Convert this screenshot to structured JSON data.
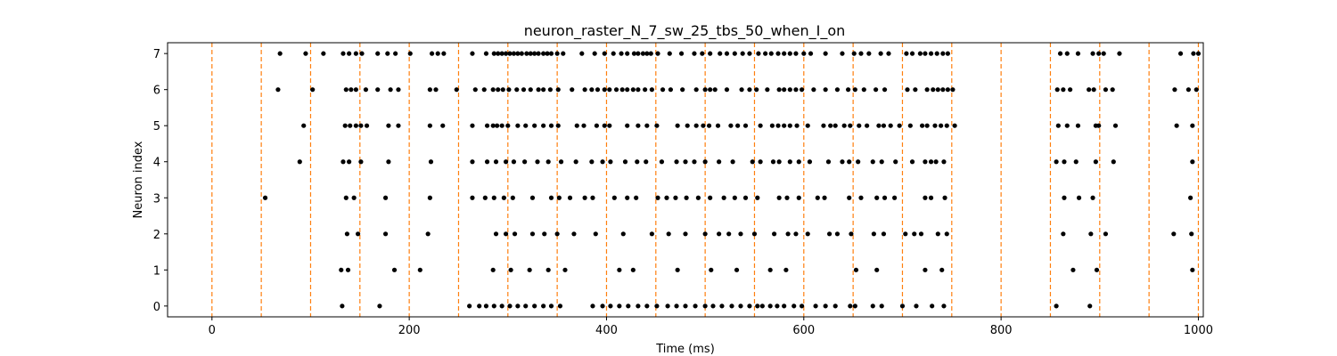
{
  "chart_data": {
    "type": "scatter",
    "title": "neuron_raster_N_7_sw_25_tbs_50_when_I_on",
    "xlabel": "Time (ms)",
    "ylabel": "Neuron index",
    "xlim": [
      -45,
      1005
    ],
    "ylim": [
      -0.3,
      7.3
    ],
    "xticks": [
      0,
      200,
      400,
      600,
      800,
      1000
    ],
    "yticks": [
      0,
      1,
      2,
      3,
      4,
      5,
      6,
      7
    ],
    "grid": false,
    "marker_color": "#000000",
    "vline_color": "#ff7f0e",
    "vlines": [
      0,
      50,
      100,
      150,
      200,
      250,
      300,
      350,
      400,
      450,
      500,
      550,
      600,
      650,
      700,
      750,
      800,
      850,
      900,
      950,
      1000
    ],
    "series": [
      {
        "neuron": 0,
        "spikes": [
          132,
          170,
          261,
          271,
          278,
          286,
          294,
          302,
          310,
          318,
          327,
          336,
          344,
          353,
          386,
          396,
          404,
          413,
          422,
          432,
          441,
          451,
          462,
          471,
          480,
          490,
          500,
          508,
          517,
          527,
          536,
          545,
          553,
          558,
          566,
          573,
          580,
          590,
          598,
          612,
          622,
          632,
          647,
          652,
          670,
          679,
          700,
          714,
          730,
          742,
          856,
          890
        ]
      },
      {
        "neuron": 1,
        "spikes": [
          131,
          138,
          185,
          211,
          285,
          303,
          322,
          341,
          358,
          413,
          427,
          472,
          506,
          532,
          566,
          582,
          653,
          674,
          723,
          740,
          873,
          897,
          994
        ]
      },
      {
        "neuron": 2,
        "spikes": [
          137,
          148,
          176,
          219,
          288,
          298,
          307,
          325,
          337,
          350,
          367,
          389,
          417,
          446,
          463,
          480,
          500,
          514,
          524,
          536,
          550,
          570,
          584,
          592,
          604,
          626,
          634,
          648,
          671,
          681,
          703,
          712,
          719,
          736,
          745,
          863,
          891,
          906,
          975,
          993
        ]
      },
      {
        "neuron": 3,
        "spikes": [
          54,
          136,
          144,
          176,
          221,
          264,
          277,
          286,
          296,
          305,
          325,
          344,
          352,
          363,
          378,
          386,
          408,
          421,
          430,
          452,
          461,
          470,
          481,
          493,
          505,
          519,
          530,
          541,
          553,
          575,
          583,
          595,
          614,
          621,
          646,
          658,
          674,
          682,
          692,
          723,
          729,
          743,
          864,
          879,
          893,
          992
        ]
      },
      {
        "neuron": 4,
        "spikes": [
          89,
          133,
          139,
          151,
          179,
          222,
          264,
          279,
          288,
          298,
          306,
          317,
          330,
          341,
          354,
          369,
          385,
          396,
          404,
          419,
          431,
          440,
          456,
          471,
          480,
          489,
          500,
          514,
          528,
          548,
          556,
          569,
          575,
          586,
          595,
          606,
          625,
          639,
          646,
          655,
          670,
          679,
          693,
          710,
          723,
          729,
          734,
          742,
          856,
          864,
          876,
          896,
          914,
          994
        ]
      },
      {
        "neuron": 5,
        "spikes": [
          93,
          135,
          140,
          146,
          151,
          157,
          179,
          189,
          221,
          234,
          264,
          279,
          285,
          289,
          294,
          300,
          310,
          318,
          327,
          336,
          344,
          351,
          370,
          377,
          390,
          398,
          403,
          421,
          432,
          441,
          451,
          472,
          482,
          491,
          498,
          504,
          513,
          526,
          533,
          541,
          556,
          568,
          574,
          580,
          586,
          593,
          604,
          620,
          627,
          632,
          641,
          647,
          656,
          664,
          676,
          681,
          688,
          697,
          708,
          720,
          725,
          733,
          739,
          745,
          753,
          858,
          867,
          878,
          896,
          899,
          916,
          978,
          994
        ]
      },
      {
        "neuron": 6,
        "spikes": [
          67,
          102,
          136,
          141,
          146,
          156,
          168,
          181,
          189,
          221,
          227,
          248,
          267,
          276,
          285,
          290,
          295,
          301,
          309,
          316,
          323,
          331,
          336,
          343,
          351,
          365,
          378,
          385,
          391,
          398,
          403,
          410,
          416,
          421,
          427,
          432,
          439,
          446,
          457,
          465,
          477,
          491,
          500,
          505,
          510,
          522,
          537,
          545,
          552,
          563,
          575,
          580,
          586,
          592,
          598,
          610,
          622,
          634,
          645,
          652,
          661,
          673,
          682,
          705,
          713,
          725,
          731,
          736,
          741,
          746,
          751,
          857,
          863,
          870,
          889,
          894,
          906,
          913,
          976,
          990,
          998
        ]
      },
      {
        "neuron": 7,
        "spikes": [
          69,
          95,
          113,
          133,
          139,
          146,
          152,
          168,
          178,
          186,
          201,
          223,
          229,
          235,
          264,
          278,
          286,
          290,
          294,
          298,
          302,
          306,
          310,
          314,
          319,
          323,
          327,
          331,
          336,
          340,
          344,
          350,
          356,
          375,
          388,
          398,
          407,
          415,
          421,
          428,
          432,
          437,
          441,
          445,
          452,
          464,
          476,
          489,
          497,
          505,
          515,
          522,
          530,
          538,
          545,
          554,
          561,
          567,
          574,
          580,
          586,
          592,
          600,
          607,
          622,
          639,
          651,
          658,
          666,
          678,
          686,
          704,
          710,
          718,
          723,
          729,
          735,
          741,
          746,
          860,
          867,
          878,
          893,
          899,
          904,
          920,
          982,
          995,
          1000
        ]
      }
    ]
  }
}
